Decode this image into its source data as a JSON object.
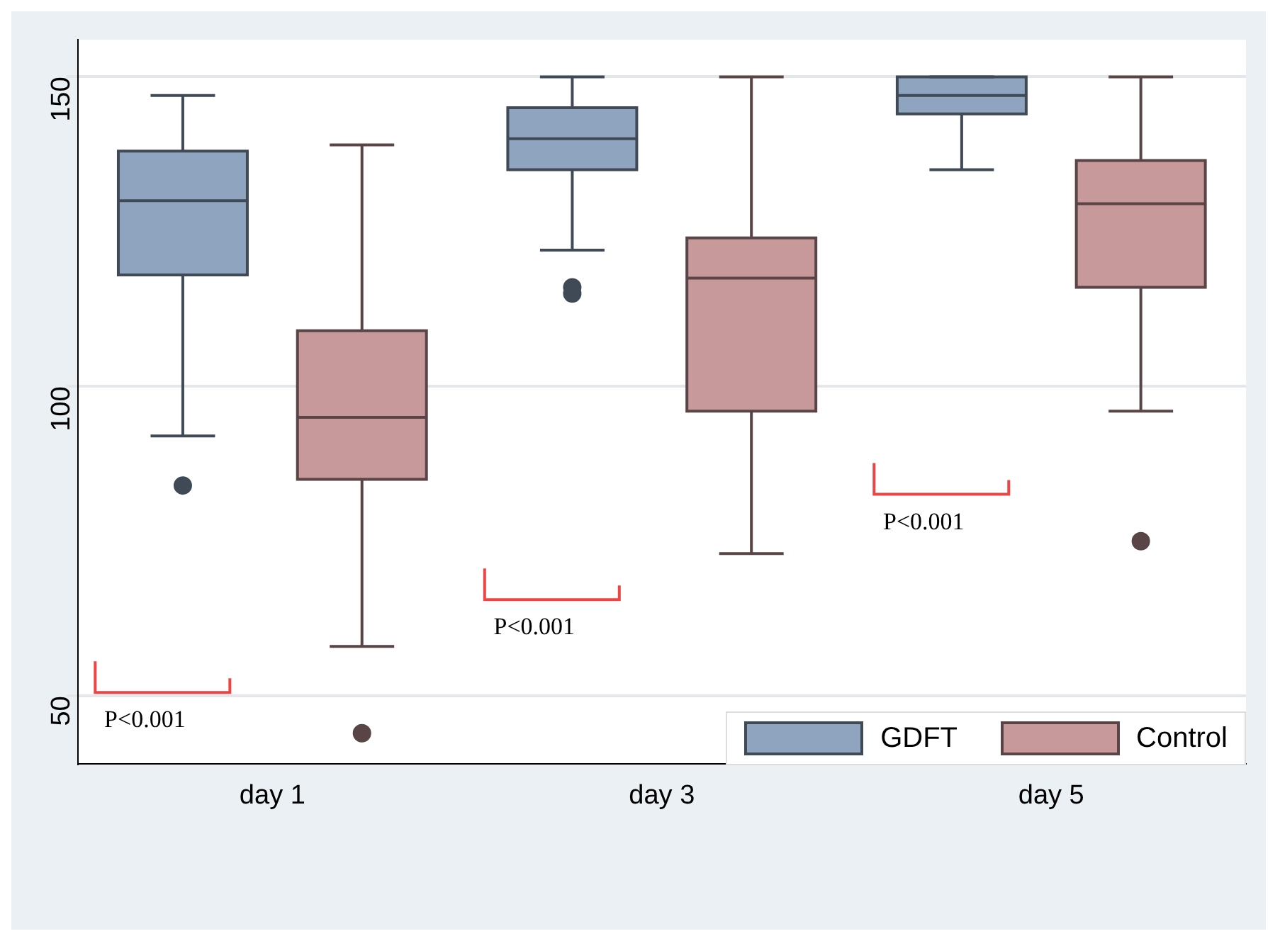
{
  "chart_data": {
    "type": "box",
    "categories": [
      "day 1",
      "day 3",
      "day 5"
    ],
    "series": [
      {
        "name": "GDFT",
        "color": "#8ea4bf",
        "boxes": [
          {
            "low": 92,
            "q1": 118,
            "median": 130,
            "q3": 138,
            "high": 147,
            "outliers": [
              84
            ]
          },
          {
            "low": 122,
            "q1": 135,
            "median": 140,
            "q3": 145,
            "high": 150,
            "outliers": [
              116,
              115
            ]
          },
          {
            "low": 135,
            "q1": 144,
            "median": 147,
            "q3": 150,
            "high": 150
          }
        ]
      },
      {
        "name": "Control",
        "color": "#c7999b",
        "boxes": [
          {
            "low": 58,
            "q1": 85,
            "median": 95,
            "q3": 109,
            "high": 139,
            "outliers": [
              44
            ]
          },
          {
            "low": 73,
            "q1": 96,
            "median": 117.5,
            "q3": 124,
            "high": 150
          },
          {
            "low": 96,
            "q1": 116,
            "median": 129.5,
            "q3": 136.5,
            "high": 150,
            "outliers": [
              75
            ]
          }
        ]
      }
    ],
    "ylim": [
      39,
      156
    ],
    "yticks": [
      50,
      100,
      150
    ],
    "grid": "y",
    "legend": "bottom right",
    "annotations": [
      "P<0.001",
      "P<0.001",
      "P<0.001"
    ]
  }
}
